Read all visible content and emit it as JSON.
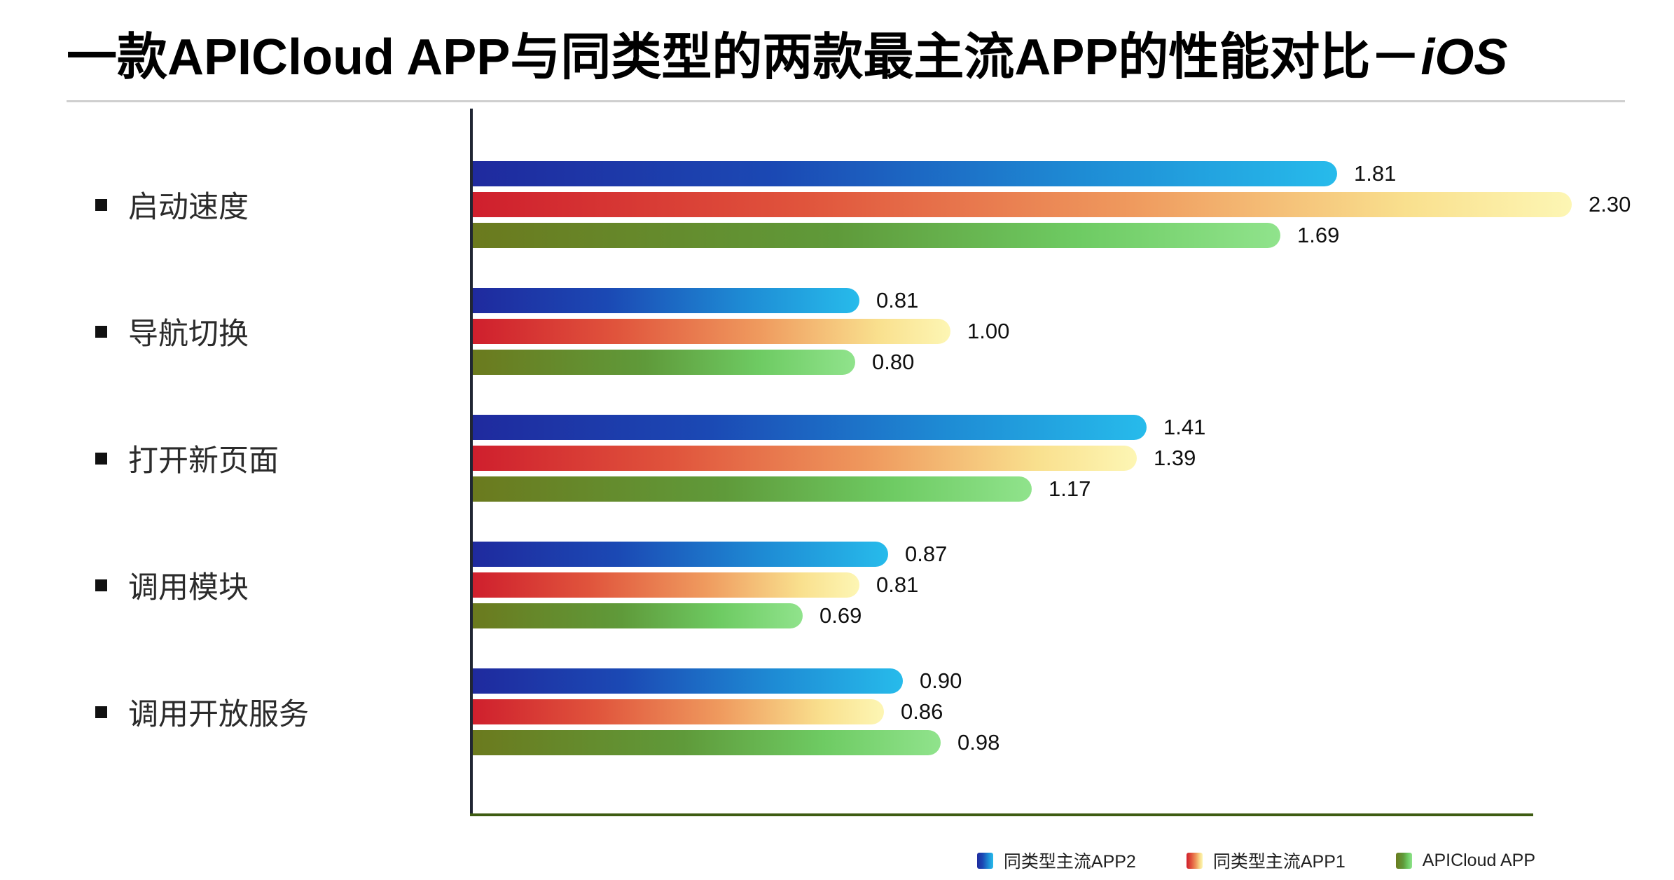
{
  "title": {
    "main": "一款APICloud APP与同类型的两款最主流APP的性能对比－",
    "suffix_italic": "iOS"
  },
  "chart_data": {
    "type": "bar",
    "orientation": "horizontal",
    "title": "一款APICloud APP与同类型的两款最主流APP的性能对比－iOS",
    "categories": [
      "启动速度",
      "导航切换",
      "打开新页面",
      "调用模块",
      "调用开放服务"
    ],
    "series": [
      {
        "name": "同类型主流APP2",
        "values": [
          1.81,
          0.81,
          1.41,
          0.87,
          0.9
        ],
        "gradient": [
          {
            "color": "#1f2a9e",
            "pos": 0
          },
          {
            "color": "#1b49b4",
            "pos": 35
          },
          {
            "color": "#1e8bd4",
            "pos": 70
          },
          {
            "color": "#27bbeb",
            "pos": 100
          }
        ]
      },
      {
        "name": "同类型主流APP1",
        "values": [
          2.3,
          1.0,
          1.39,
          0.81,
          0.86
        ],
        "gradient": [
          {
            "color": "#cf1f2d",
            "pos": 0
          },
          {
            "color": "#e0543c",
            "pos": 30
          },
          {
            "color": "#ef9a5e",
            "pos": 60
          },
          {
            "color": "#f9e08e",
            "pos": 85
          },
          {
            "color": "#fdf6b4",
            "pos": 100
          }
        ]
      },
      {
        "name": "APICloud APP",
        "values": [
          1.69,
          0.8,
          1.17,
          0.69,
          0.98
        ],
        "gradient": [
          {
            "color": "#6b7a1e",
            "pos": 0
          },
          {
            "color": "#5f9a3a",
            "pos": 45
          },
          {
            "color": "#6ecb63",
            "pos": 75
          },
          {
            "color": "#90e38c",
            "pos": 100
          }
        ]
      }
    ],
    "value_decimals": 2,
    "xlim": [
      0,
      2.5
    ],
    "grid": false,
    "legend_position": "bottom-right",
    "axis_color_vertical": "#202633",
    "axis_color_horizontal": "#3e5c12",
    "category_bullet_color": "#111111"
  }
}
